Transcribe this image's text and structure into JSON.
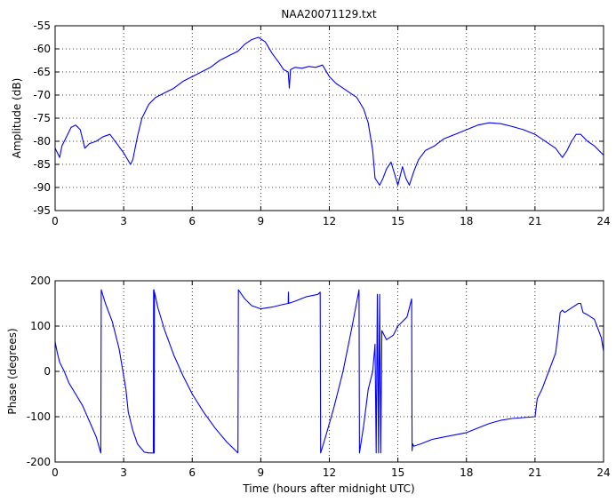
{
  "chart_data": [
    {
      "type": "line",
      "title": "NAA20071129.txt",
      "xlabel": "",
      "ylabel": "Amplitude (dB)",
      "xlim": [
        0,
        24
      ],
      "ylim": [
        -95,
        -55
      ],
      "xticks": [
        0,
        3,
        6,
        9,
        12,
        15,
        18,
        21,
        24
      ],
      "yticks": [
        -95,
        -90,
        -85,
        -80,
        -75,
        -70,
        -65,
        -60,
        -55
      ],
      "xtick_labels": [
        "0",
        "3",
        "6",
        "9",
        "12",
        "15",
        "18",
        "21",
        "24"
      ],
      "ytick_labels": [
        "-95",
        "-90",
        "-85",
        "-80",
        "-75",
        "-70",
        "-65",
        "-60",
        "-55"
      ],
      "grid": true,
      "color": "#0000ff",
      "series": [
        {
          "x": [
            0,
            0.1,
            0.2,
            0.3,
            0.5,
            0.7,
            0.9,
            1.1,
            1.3,
            1.5,
            1.8,
            2.1,
            2.4,
            2.7,
            3.0,
            3.3,
            3.4,
            3.6,
            3.8,
            4.1,
            4.4,
            4.8,
            5.2,
            5.6,
            6.0,
            6.4,
            6.8,
            7.2,
            7.6,
            8.0,
            8.3,
            8.6,
            8.9,
            9.2,
            9.5,
            9.8,
            10.0,
            10.2,
            10.25,
            10.3,
            10.5,
            10.8,
            11.1,
            11.4,
            11.7,
            12.0,
            12.3,
            12.6,
            12.9,
            13.2,
            13.5,
            13.7,
            13.9,
            14.0,
            14.2,
            14.35,
            14.5,
            14.7,
            14.85,
            15.0,
            15.2,
            15.35,
            15.5,
            15.7,
            15.9,
            16.2,
            16.6,
            17.0,
            17.5,
            18.0,
            18.5,
            19.0,
            19.5,
            20.0,
            20.5,
            21.0,
            21.3,
            21.6,
            21.9,
            22.2,
            22.4,
            22.6,
            22.8,
            23.0,
            23.3,
            23.6,
            23.9,
            24.0
          ],
          "y": [
            -81.5,
            -82.5,
            -83.5,
            -81,
            -79,
            -77,
            -76.5,
            -77.5,
            -81.5,
            -80.5,
            -80,
            -79,
            -78.5,
            -80.5,
            -82.5,
            -85,
            -84,
            -79,
            -75,
            -72,
            -70.5,
            -69.5,
            -68.5,
            -67,
            -66,
            -65,
            -64,
            -62.5,
            -61.5,
            -60.5,
            -59,
            -58,
            -57.5,
            -58.5,
            -61,
            -63,
            -64.5,
            -65,
            -68.5,
            -64.5,
            -64,
            -64.2,
            -63.8,
            -64,
            -63.5,
            -66,
            -67.5,
            -68.5,
            -69.5,
            -70.5,
            -73,
            -76,
            -82,
            -88,
            -89.5,
            -88,
            -86,
            -84.5,
            -87,
            -89.5,
            -85.5,
            -88,
            -89.5,
            -86.5,
            -84,
            -82,
            -81,
            -79.5,
            -78.5,
            -77.5,
            -76.5,
            -76,
            -76.2,
            -76.8,
            -77.5,
            -78.5,
            -79.5,
            -80.5,
            -81.5,
            -83.5,
            -82,
            -80,
            -78.5,
            -78.5,
            -80,
            -81,
            -82.5,
            -83
          ]
        }
      ]
    },
    {
      "type": "line",
      "title": "",
      "xlabel": "Time (hours after midnight UTC)",
      "ylabel": "Phase (degrees)",
      "xlim": [
        0,
        24
      ],
      "ylim": [
        -200,
        200
      ],
      "xticks": [
        0,
        3,
        6,
        9,
        12,
        15,
        18,
        21,
        24
      ],
      "yticks": [
        -200,
        -100,
        0,
        100,
        200
      ],
      "xtick_labels": [
        "0",
        "3",
        "6",
        "9",
        "12",
        "15",
        "18",
        "21",
        "24"
      ],
      "ytick_labels": [
        "-200",
        "-100",
        "0",
        "100",
        "200"
      ],
      "grid": true,
      "color": "#0000ff",
      "series": [
        {
          "x": [
            0,
            0.1,
            0.2,
            0.4,
            0.6,
            0.9,
            1.2,
            1.5,
            1.8,
            2.0,
            2.02,
            2.2,
            2.5,
            2.8,
            3.1,
            3.2,
            3.4,
            3.6,
            3.9,
            4.1,
            4.3,
            4.31,
            4.32,
            4.33,
            4.34,
            4.35,
            4.5,
            4.8,
            5.2,
            5.6,
            6.0,
            6.5,
            7.0,
            7.5,
            8.0,
            8.02,
            8.3,
            8.6,
            9.0,
            9.5,
            10.0,
            10.2,
            10.21,
            10.22,
            10.5,
            11.0,
            11.5,
            11.6,
            11.62,
            11.8,
            12.2,
            12.6,
            13.0,
            13.3,
            13.32,
            13.5,
            13.7,
            13.9,
            14.0,
            14.05,
            14.1,
            14.15,
            14.2,
            14.25,
            14.3,
            14.5,
            14.8,
            15.0,
            15.2,
            15.4,
            15.6,
            15.62,
            15.65,
            15.7,
            16.0,
            16.5,
            17.0,
            17.5,
            18.0,
            18.5,
            19.0,
            19.5,
            20.0,
            20.5,
            21.0,
            21.1,
            21.3,
            21.6,
            21.9,
            22.0,
            22.1,
            22.2,
            22.3,
            22.6,
            22.9,
            23.0,
            23.1,
            23.3,
            23.6,
            23.9,
            24.0
          ],
          "y": [
            65,
            40,
            20,
            0,
            -25,
            -50,
            -75,
            -110,
            -145,
            -180,
            180,
            150,
            110,
            50,
            -40,
            -90,
            -130,
            -160,
            -178,
            -180,
            -180,
            180,
            -180,
            180,
            -180,
            175,
            140,
            90,
            35,
            -10,
            -50,
            -90,
            -125,
            -155,
            -180,
            180,
            160,
            145,
            138,
            142,
            148,
            150,
            175,
            150,
            155,
            165,
            170,
            175,
            -180,
            -150,
            -80,
            0,
            100,
            180,
            -180,
            -120,
            -40,
            0,
            60,
            -180,
            170,
            -180,
            170,
            -180,
            90,
            70,
            80,
            100,
            110,
            120,
            160,
            -175,
            -160,
            -165,
            -160,
            -150,
            -145,
            -140,
            -135,
            -125,
            -115,
            -108,
            -104,
            -102,
            -100,
            -60,
            -40,
            0,
            40,
            80,
            130,
            135,
            130,
            140,
            150,
            150,
            130,
            125,
            115,
            75,
            45
          ]
        }
      ]
    }
  ]
}
